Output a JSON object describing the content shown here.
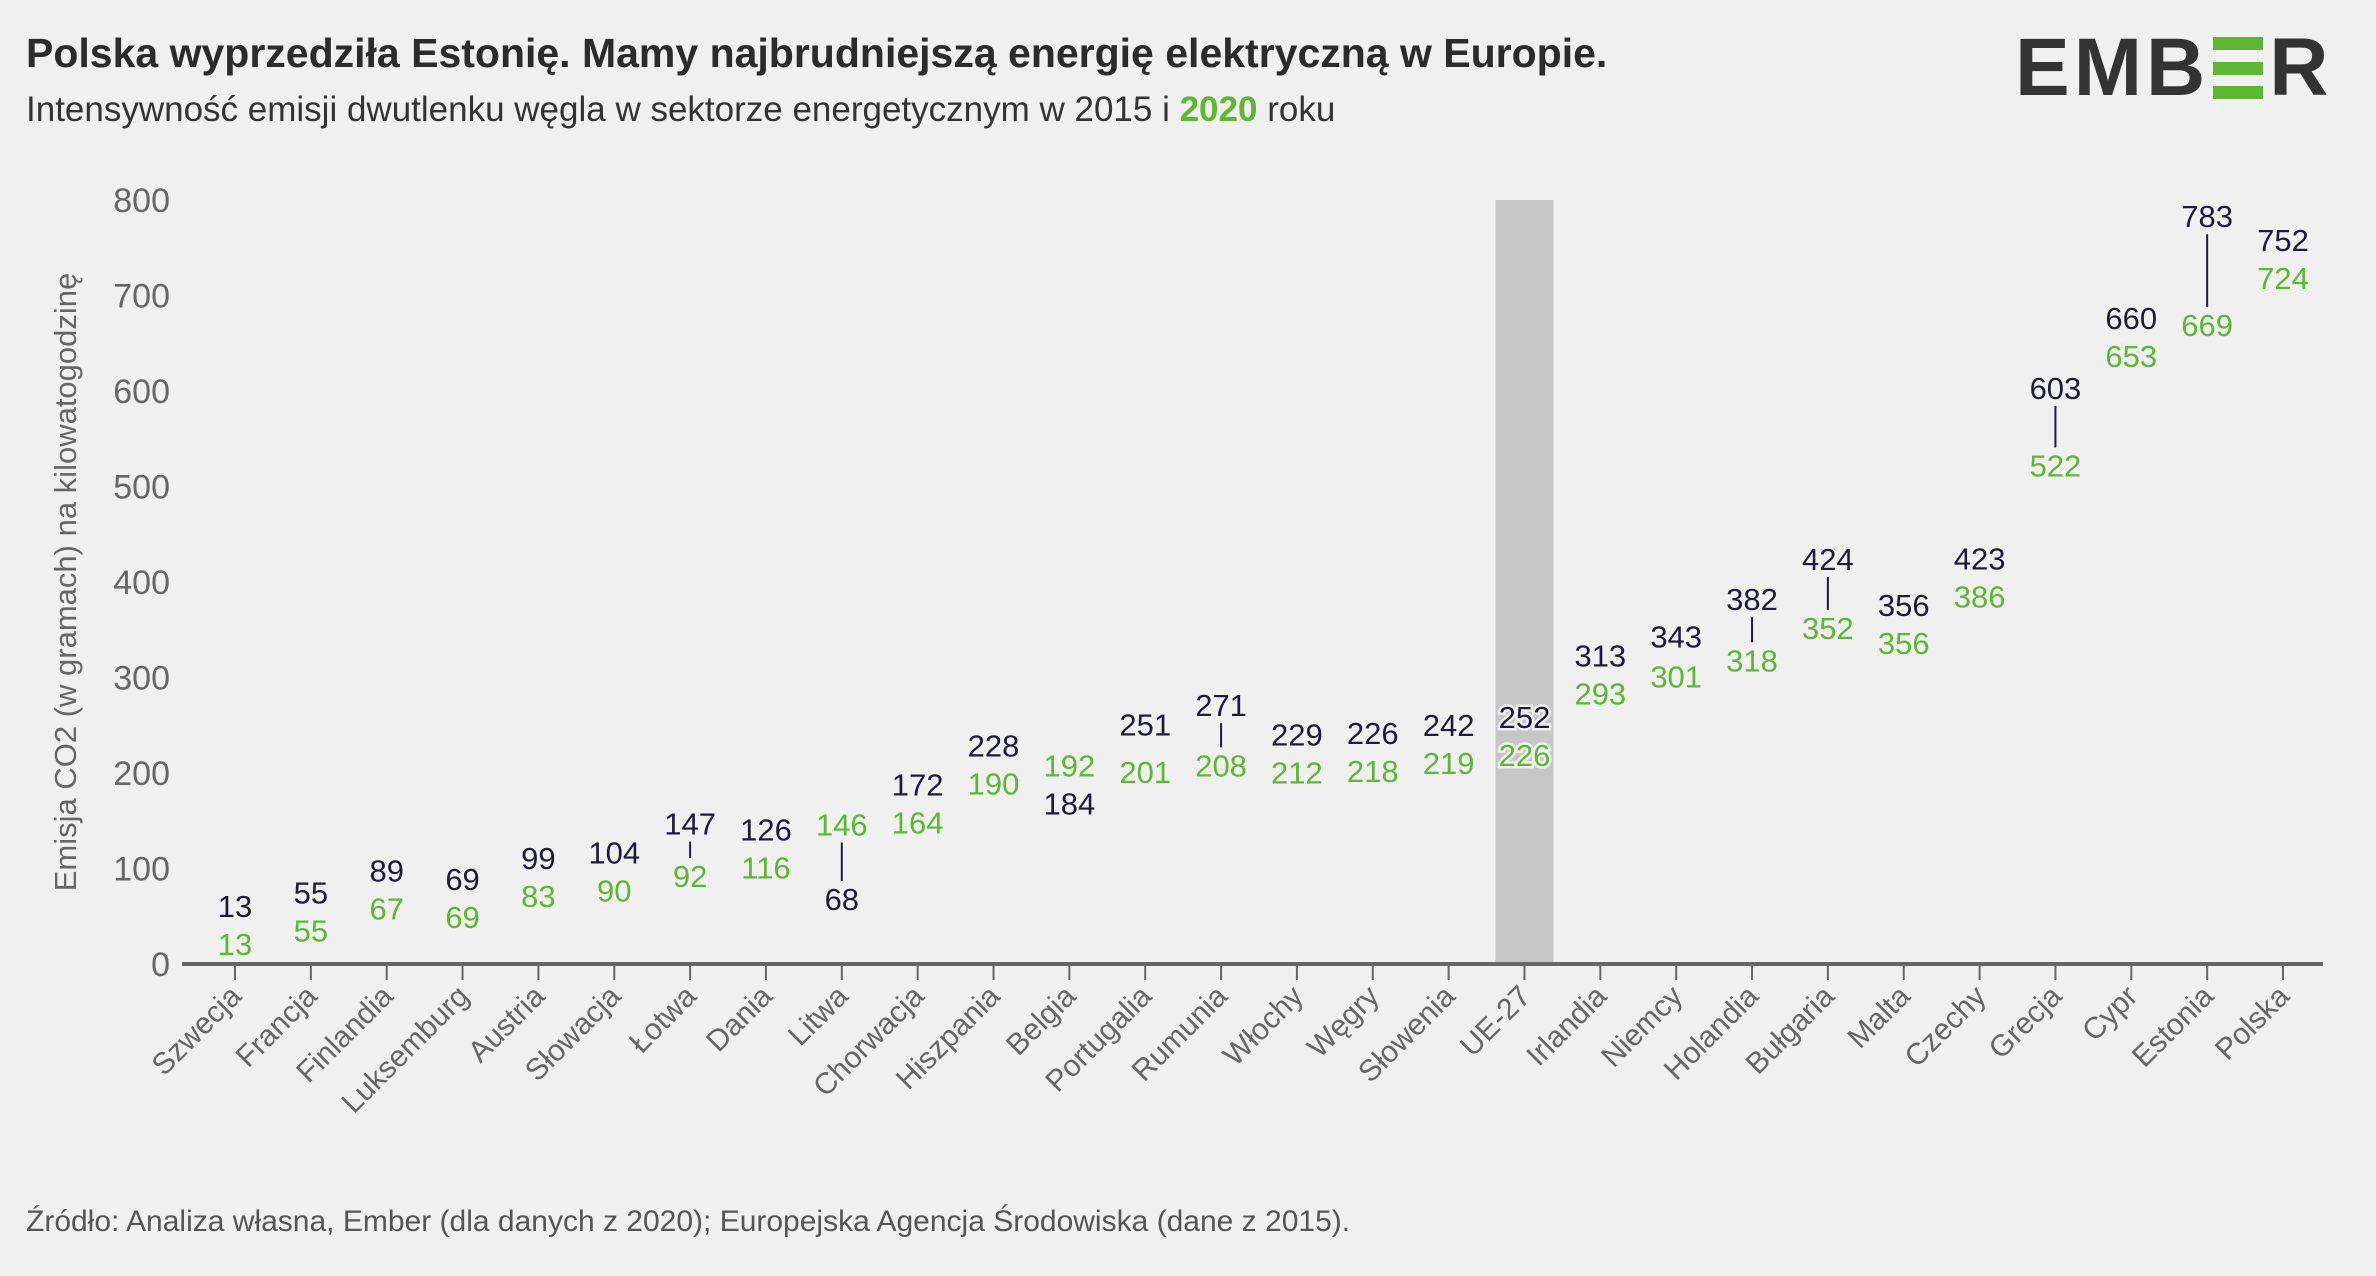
{
  "header": {
    "title": "Polska wyprzedziła Estonię. Mamy najbrudniejszą energię elektryczną w Europie.",
    "subtitle_before": "Intensywność emisji dwutlenku węgla w sektorze energetycznym w 2015 i ",
    "subtitle_highlight": "2020",
    "subtitle_after": " roku",
    "logo_text": "EMBER"
  },
  "source": "Źródło: Analiza własna, Ember (dla danych z 2020); Europejska Agencja Środowiska (dane z 2015).",
  "colors": {
    "series_2015": "#1e1b3a",
    "series_2020": "#5cb832",
    "highlight_band": "#c6c6c6",
    "axis": "#666666"
  },
  "chart_data": {
    "type": "dumbbell",
    "ylabel": "Emisja CO2 (w gramach) na kilowatogodzinę",
    "ylim": [
      0,
      800
    ],
    "yticks": [
      0,
      100,
      200,
      300,
      400,
      500,
      600,
      700,
      800
    ],
    "grid": false,
    "highlight_category": "UE-27",
    "categories": [
      "Szwecja",
      "Francja",
      "Finlandia",
      "Luksemburg",
      "Austria",
      "Słowacja",
      "Łotwa",
      "Dania",
      "Litwa",
      "Chorwacja",
      "Hiszpania",
      "Belgia",
      "Portugalia",
      "Rumunia",
      "Włochy",
      "Węgry",
      "Słowenia",
      "UE-27",
      "Irlandia",
      "Niemcy",
      "Holandia",
      "Bułgaria",
      "Malta",
      "Czechy",
      "Grecja",
      "Cypr",
      "Estonia",
      "Polska"
    ],
    "series": [
      {
        "name": "2015",
        "values": [
          13,
          55,
          89,
          69,
          99,
          104,
          147,
          126,
          68,
          172,
          228,
          184,
          251,
          271,
          229,
          226,
          242,
          252,
          313,
          343,
          382,
          424,
          356,
          423,
          603,
          660,
          783,
          752
        ]
      },
      {
        "name": "2020",
        "values": [
          13,
          55,
          67,
          69,
          83,
          90,
          92,
          116,
          146,
          164,
          190,
          192,
          201,
          208,
          212,
          218,
          219,
          226,
          293,
          301,
          318,
          352,
          356,
          386,
          522,
          653,
          669,
          724
        ]
      }
    ]
  }
}
